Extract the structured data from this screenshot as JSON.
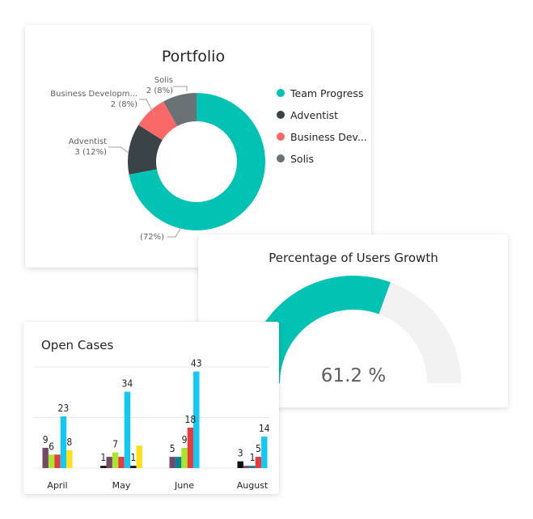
{
  "colors": {
    "team_progress": "#01c2b3",
    "adventist": "#3a4347",
    "business_dev": "#fb6868",
    "solis": "#6b7275",
    "gauge_fill": "#01c2b3",
    "gauge_track": "#f2f2f2"
  },
  "chart_data": [
    {
      "type": "pie",
      "variant": "donut",
      "title": "Portfolio",
      "legend_position": "right",
      "slices": [
        {
          "name": "Team Progress",
          "short": "Team Progress",
          "value": 18,
          "percent_label": "(72%)"
        },
        {
          "name": "Adventist",
          "short": "Adventist",
          "value": 3,
          "percent_label": "3 (12%)"
        },
        {
          "name": "Business Developm...",
          "short": "Business Dev...",
          "value": 2,
          "percent_label": "2 (8%)"
        },
        {
          "name": "Solis",
          "short": "Solis",
          "value": 2,
          "percent_label": "2 (8%)"
        }
      ]
    },
    {
      "type": "gauge",
      "title": "Percentage of Users Growth",
      "value": 61.2,
      "max": 100,
      "value_label": "61.2 %"
    },
    {
      "type": "bar",
      "title": "Open Cases",
      "categories": [
        "April",
        "May",
        "June",
        "August"
      ],
      "ylim": [
        0,
        45
      ],
      "gridlines": [
        0,
        22.5,
        45
      ],
      "series_colors": [
        "#744868",
        "#111111",
        "#a7e62b",
        "#e63c3c",
        "#028594",
        "#12c9f5",
        "#ffe01b"
      ],
      "groups": [
        {
          "category": "April",
          "bars": [
            {
              "value": 9,
              "color_index": 0,
              "label": "9"
            },
            {
              "value": 6,
              "color_index": 2,
              "label": "6"
            },
            {
              "value": 6,
              "color_index": 3
            },
            {
              "value": 23,
              "color_index": 5,
              "label": "23"
            },
            {
              "value": 8,
              "color_index": 6,
              "label": "8"
            }
          ]
        },
        {
          "category": "May",
          "bars": [
            {
              "value": 1,
              "color_index": 1,
              "label": "1"
            },
            {
              "value": 5,
              "color_index": 0
            },
            {
              "value": 7,
              "color_index": 2,
              "label": "7"
            },
            {
              "value": 5,
              "color_index": 3
            },
            {
              "value": 34,
              "color_index": 5,
              "label": "34"
            },
            {
              "value": 1,
              "color_index": 1,
              "label": "1"
            },
            {
              "value": 10,
              "color_index": 6
            }
          ]
        },
        {
          "category": "June",
          "bars": [
            {
              "value": 5,
              "color_index": 0,
              "label": "5"
            },
            {
              "value": 5,
              "color_index": 4
            },
            {
              "value": 9,
              "color_index": 2,
              "label": "9"
            },
            {
              "value": 18,
              "color_index": 3,
              "label": "18"
            },
            {
              "value": 43,
              "color_index": 5,
              "label": "43"
            }
          ]
        },
        {
          "category": "August",
          "bars": [
            {
              "value": 3,
              "color_index": 1,
              "label": "3"
            },
            {
              "value": 1,
              "color_index": 0
            },
            {
              "value": 1,
              "color_index": 4,
              "label": "1"
            },
            {
              "value": 5,
              "color_index": 3,
              "label": "5"
            },
            {
              "value": 14,
              "color_index": 5,
              "label": "14"
            }
          ]
        }
      ]
    }
  ]
}
